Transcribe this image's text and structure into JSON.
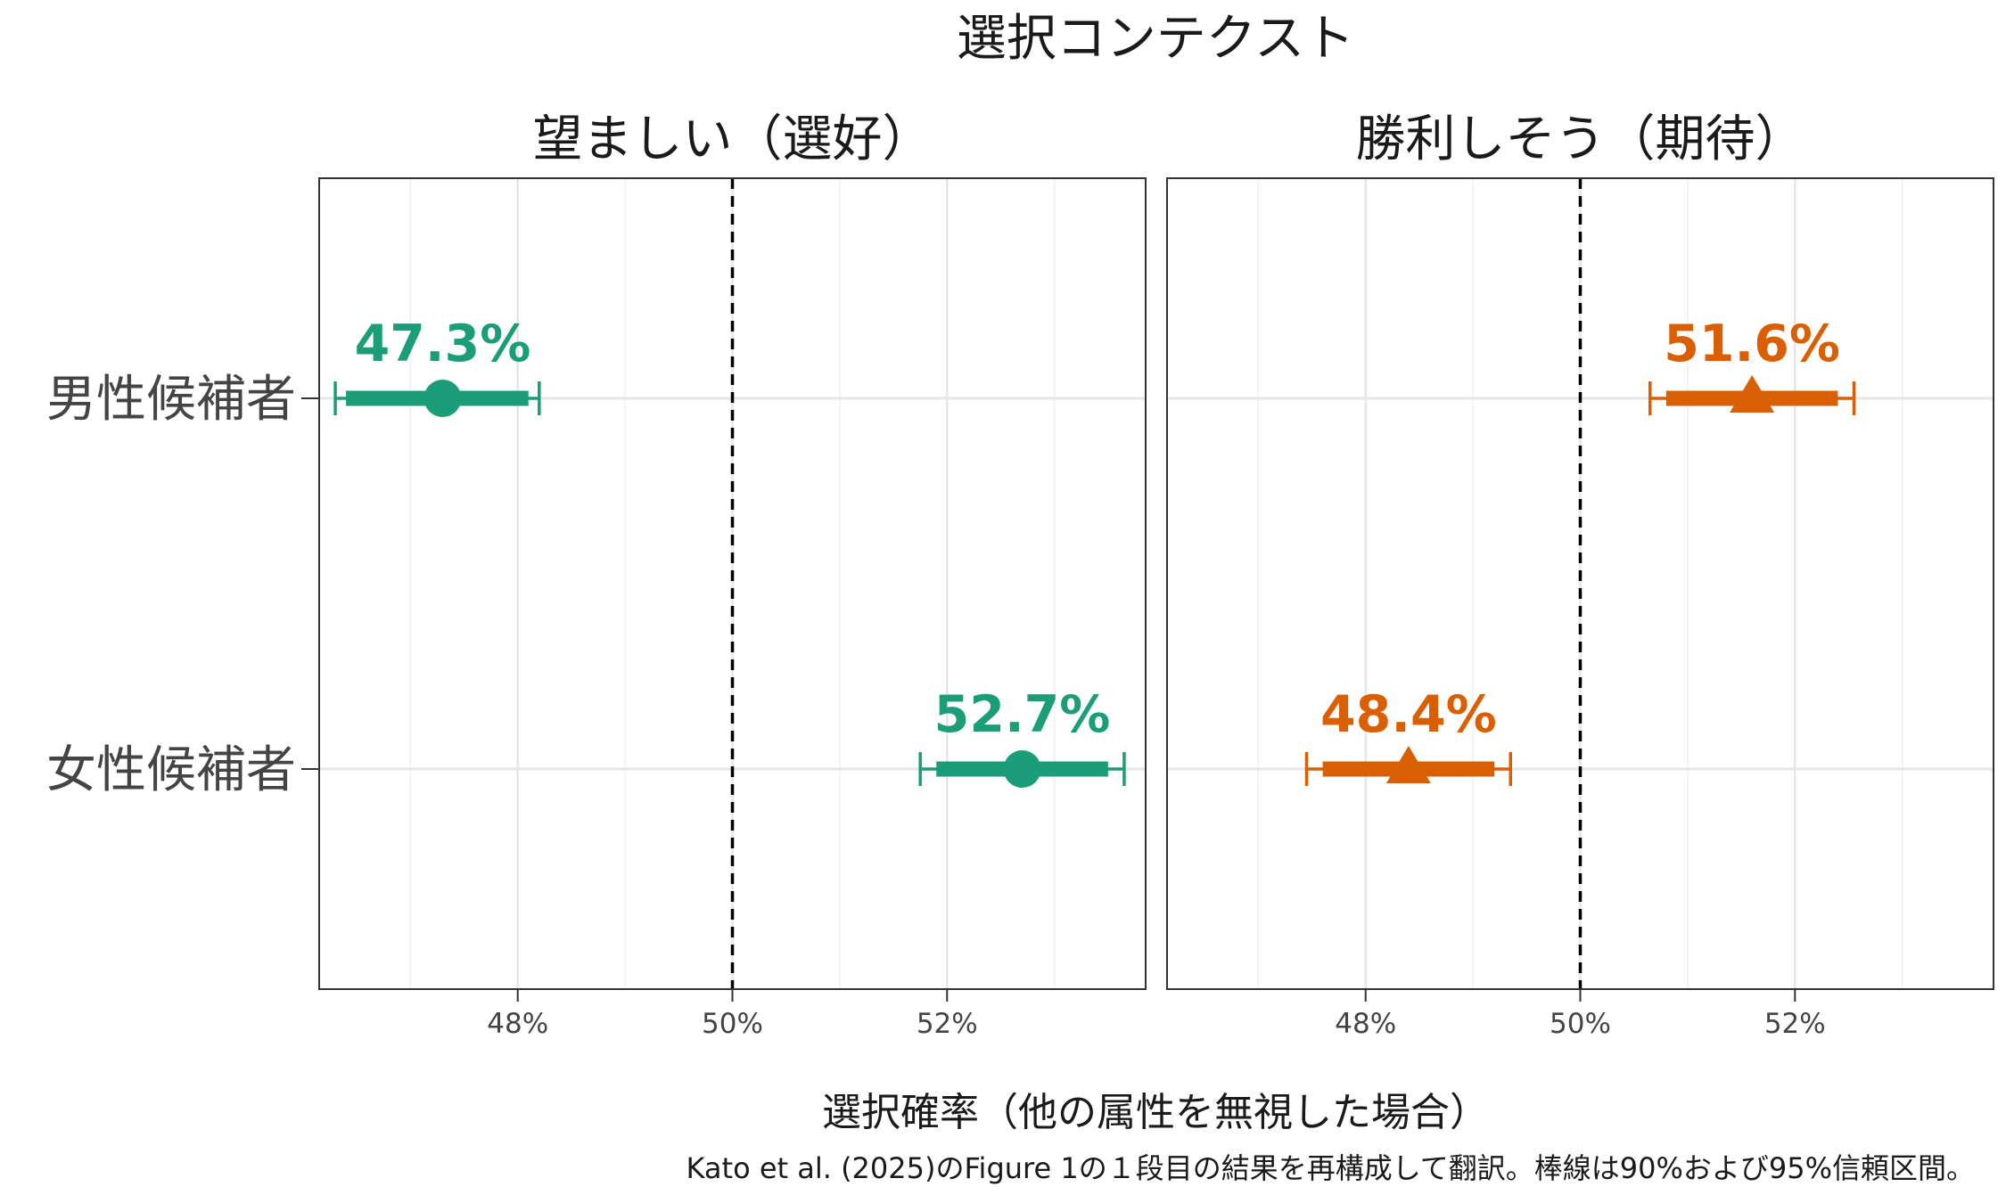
{
  "chart_data": {
    "type": "scatter",
    "title": "選択コンテクスト",
    "xlabel": "選択確率（他の属性を無視した場合）",
    "caption": "Kato et al. (2025)のFigure 1の１段目の結果を再構成して翻訳。棒線は90%および95%信頼区間。",
    "categories": [
      "男性候補者",
      "女性候補者"
    ],
    "xlim": [
      46.15,
      53.85
    ],
    "x_ticks": [
      48,
      50,
      52
    ],
    "x_tick_labels": [
      "48%",
      "50%",
      "52%"
    ],
    "reference_line": 50,
    "grid": true,
    "panels": [
      {
        "title": "望ましい（選好）",
        "color": "#1b9e77",
        "marker": "circle",
        "points": [
          {
            "category": "男性候補者",
            "value": 47.3,
            "label": "47.3%",
            "ci90": [
              46.4,
              48.1
            ],
            "ci95": [
              46.3,
              48.2
            ]
          },
          {
            "category": "女性候補者",
            "value": 52.7,
            "label": "52.7%",
            "ci90": [
              51.9,
              53.5
            ],
            "ci95": [
              51.75,
              53.65
            ]
          }
        ]
      },
      {
        "title": "勝利しそう（期待）",
        "color": "#d95f02",
        "marker": "triangle",
        "points": [
          {
            "category": "男性候補者",
            "value": 51.6,
            "label": "51.6%",
            "ci90": [
              50.8,
              52.4
            ],
            "ci95": [
              50.65,
              52.55
            ]
          },
          {
            "category": "女性候補者",
            "value": 48.4,
            "label": "48.4%",
            "ci90": [
              47.6,
              49.2
            ],
            "ci95": [
              47.45,
              49.35
            ]
          }
        ]
      }
    ]
  }
}
